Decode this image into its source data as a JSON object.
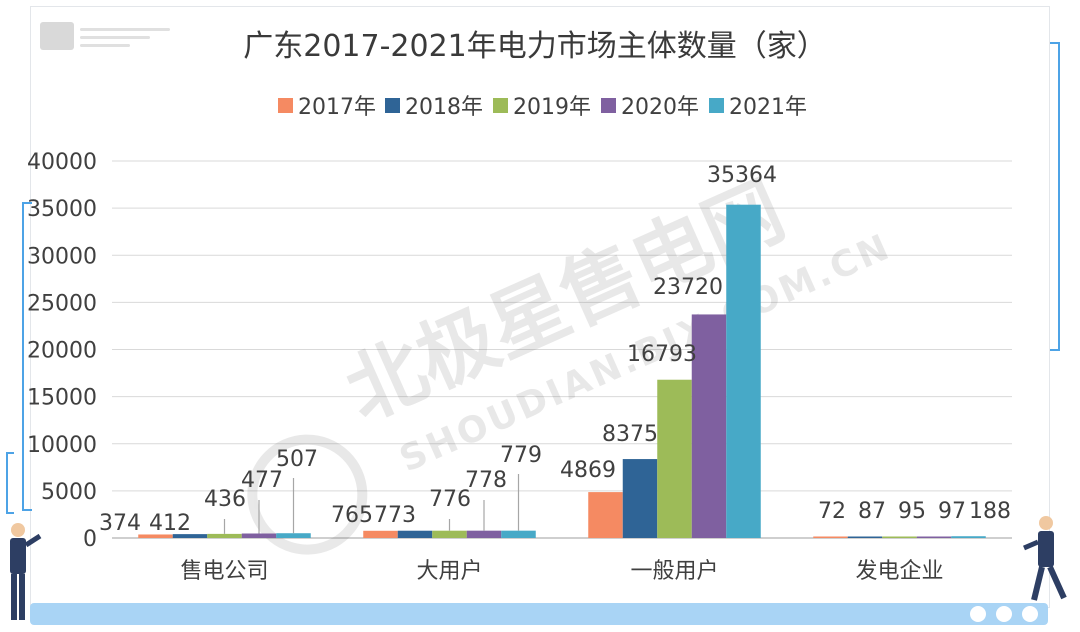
{
  "chart_data": {
    "type": "bar",
    "title": "广东2017-2021年电力市场主体数量（家）",
    "categories": [
      "售电公司",
      "大用户",
      "一般用户",
      "发电企业"
    ],
    "series": [
      {
        "name": "2017年",
        "color": "#f58a62",
        "values": [
          374,
          765,
          4869,
          72
        ]
      },
      {
        "name": "2018年",
        "color": "#2f6496",
        "values": [
          412,
          773,
          8375,
          87
        ]
      },
      {
        "name": "2019年",
        "color": "#9dbb58",
        "values": [
          436,
          776,
          16793,
          95
        ]
      },
      {
        "name": "2020年",
        "color": "#7f60a0",
        "values": [
          477,
          778,
          23720,
          97
        ]
      },
      {
        "name": "2021年",
        "color": "#47a9c7",
        "values": [
          507,
          779,
          35364,
          188
        ]
      }
    ],
    "ylim": [
      0,
      40000
    ],
    "yticks": [
      0,
      5000,
      10000,
      15000,
      20000,
      25000,
      30000,
      35000,
      40000
    ],
    "grid": true,
    "legend": "top"
  },
  "watermark": {
    "main": "北极星售电网",
    "sub": "SHOUDIAN.BJX.COM.CN"
  }
}
